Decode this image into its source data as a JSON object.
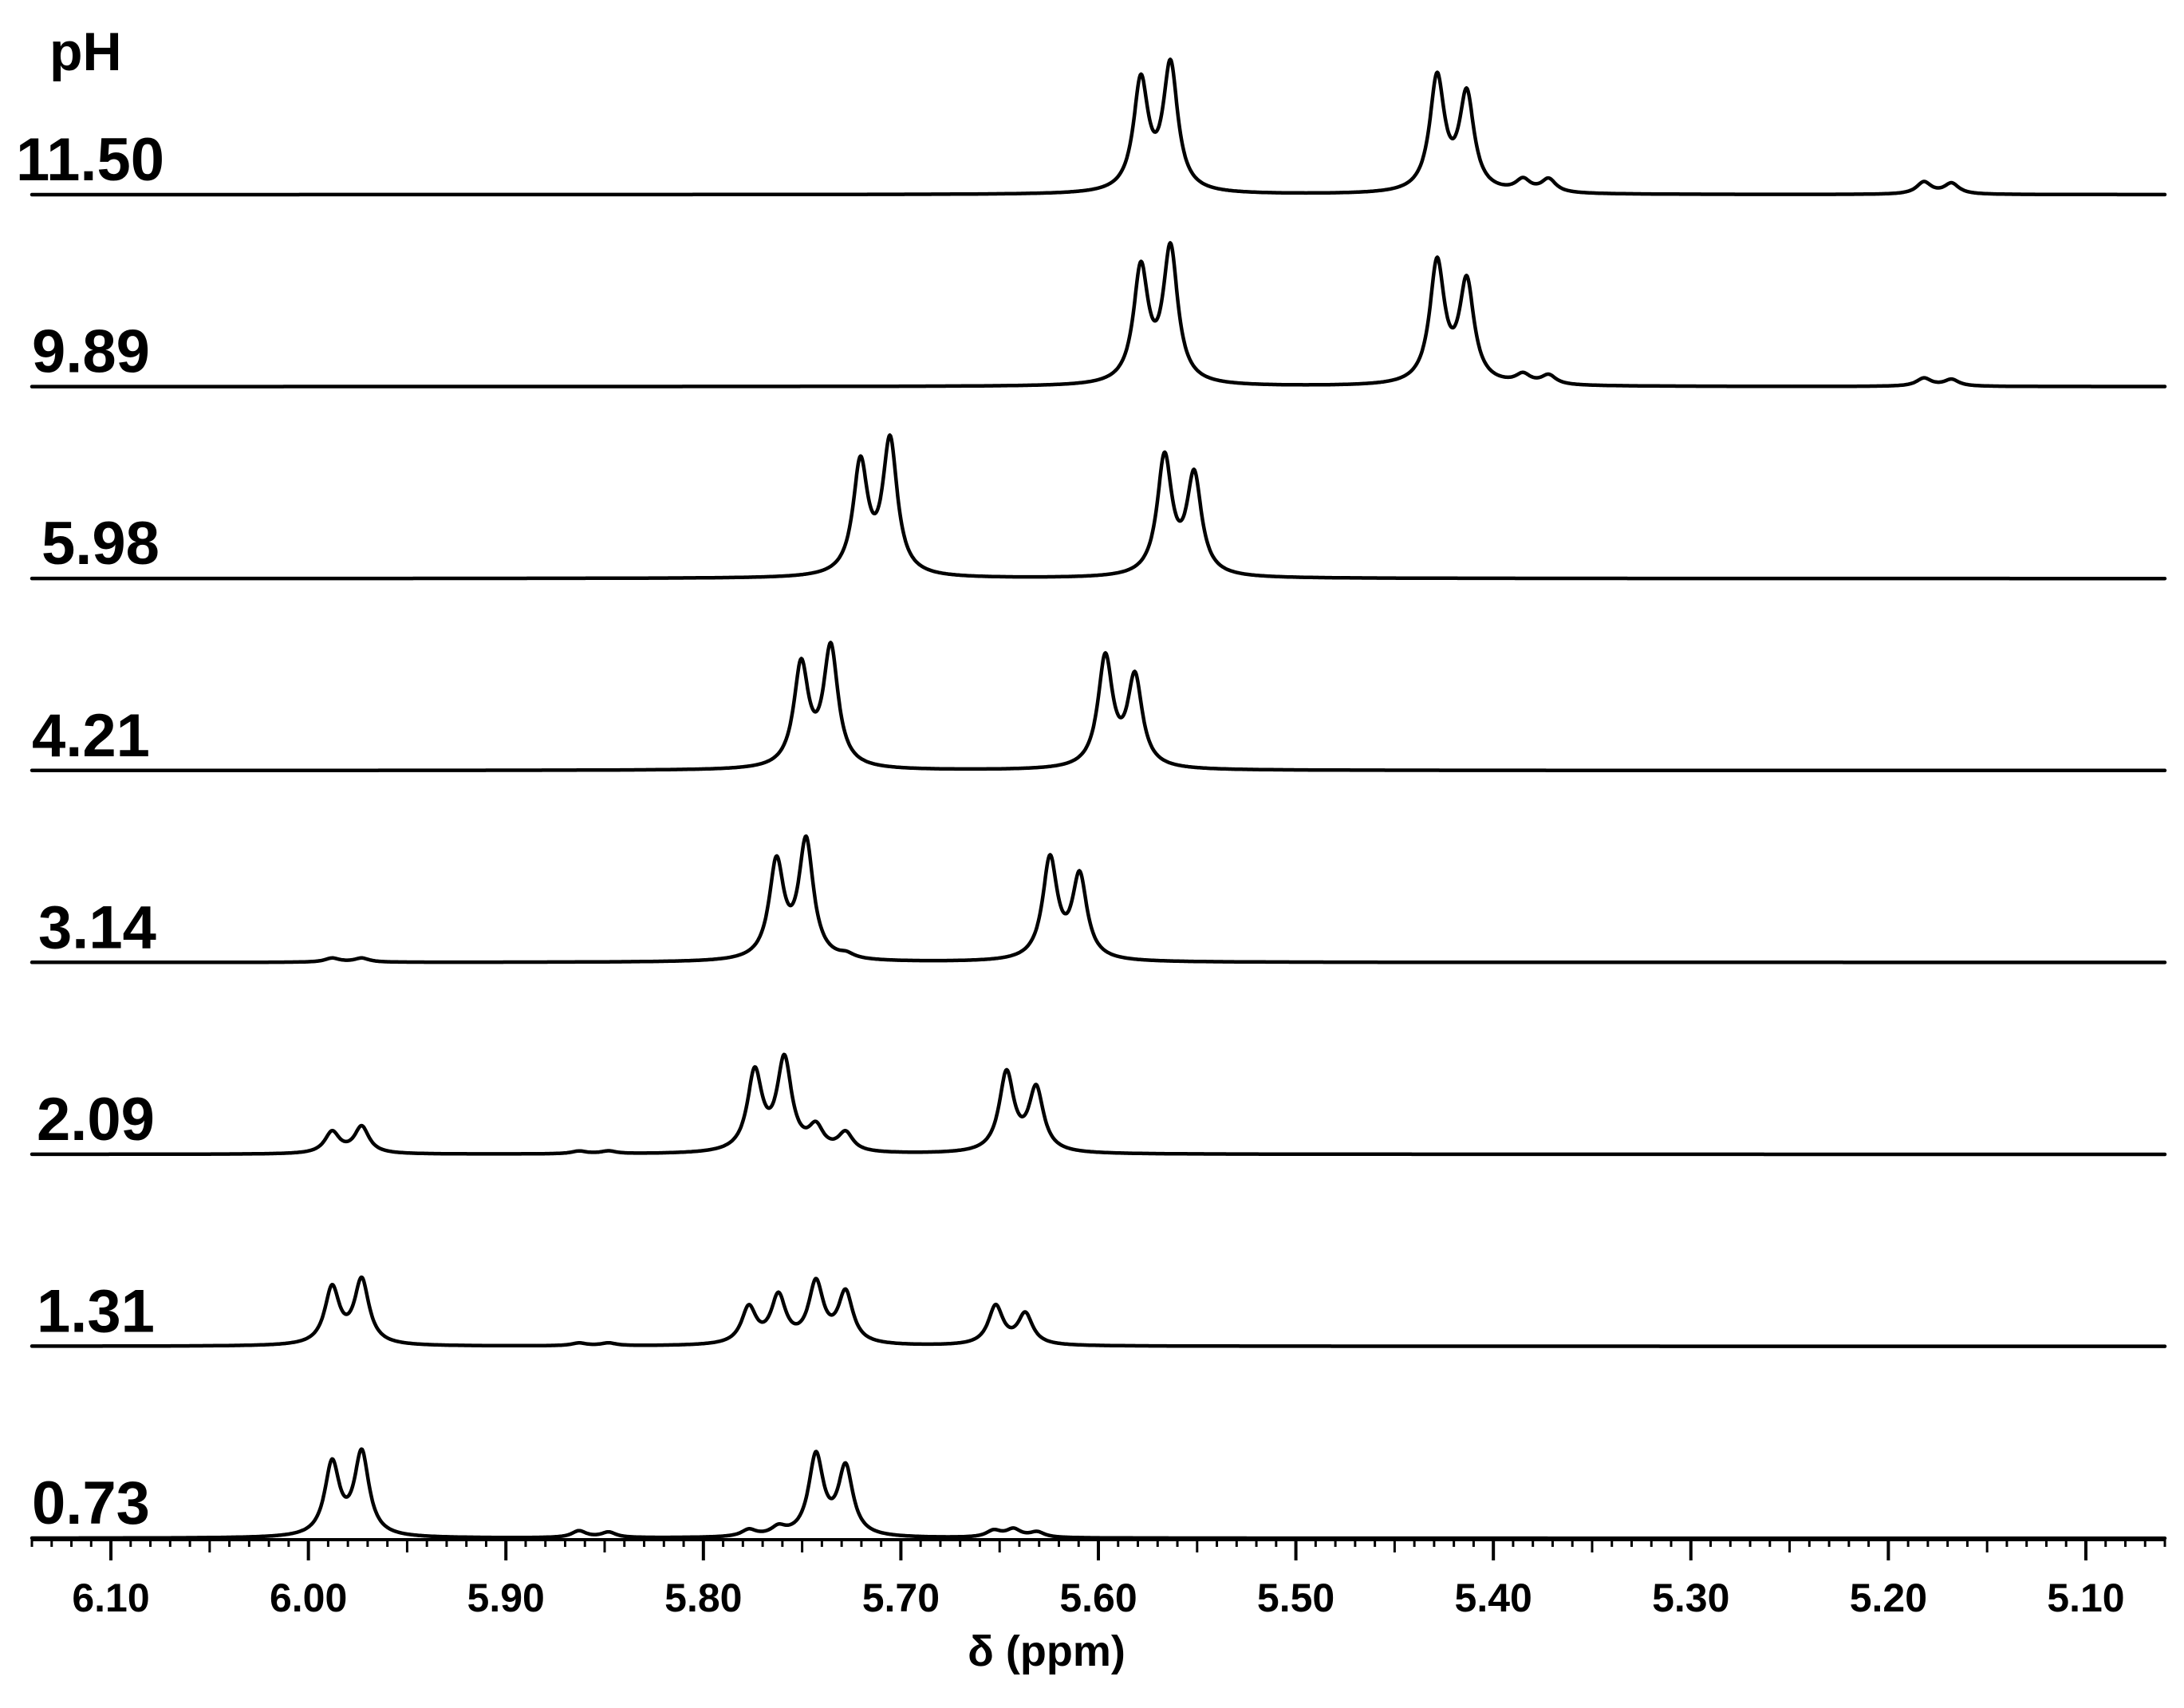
{
  "chart_data": {
    "type": "line",
    "legend_title": "pH",
    "xlabel": "δ (ppm)",
    "ylabel": "",
    "x_reversed": true,
    "xlim": [
      6.14,
      5.06
    ],
    "x_major_step": 0.1,
    "x_minor_step": 0.01,
    "x_tick_labels": [
      "6.10",
      "6.00",
      "5.90",
      "5.80",
      "5.70",
      "5.60",
      "5.50",
      "5.40",
      "5.30",
      "5.20",
      "5.10"
    ],
    "series": [
      {
        "name": "11.50",
        "peaks": [
          {
            "x": 5.5785,
            "h": 0.82
          },
          {
            "x": 5.5635,
            "h": 0.94
          },
          {
            "x": 5.4285,
            "h": 0.85
          },
          {
            "x": 5.4135,
            "h": 0.72
          },
          {
            "x": 5.385,
            "h": 0.09
          },
          {
            "x": 5.372,
            "h": 0.1
          },
          {
            "x": 5.182,
            "h": 0.09
          },
          {
            "x": 5.168,
            "h": 0.08
          }
        ]
      },
      {
        "name": "9.89",
        "peaks": [
          {
            "x": 5.5785,
            "h": 0.85
          },
          {
            "x": 5.5635,
            "h": 1.0
          },
          {
            "x": 5.4285,
            "h": 0.9
          },
          {
            "x": 5.4135,
            "h": 0.75
          },
          {
            "x": 5.385,
            "h": 0.07
          },
          {
            "x": 5.372,
            "h": 0.07
          },
          {
            "x": 5.182,
            "h": 0.06
          },
          {
            "x": 5.168,
            "h": 0.05
          }
        ]
      },
      {
        "name": "5.98",
        "peaks": [
          {
            "x": 5.7205,
            "h": 0.83
          },
          {
            "x": 5.7055,
            "h": 1.0
          },
          {
            "x": 5.5665,
            "h": 0.88
          },
          {
            "x": 5.5515,
            "h": 0.74
          }
        ]
      },
      {
        "name": "4.21",
        "peaks": [
          {
            "x": 5.7505,
            "h": 0.76
          },
          {
            "x": 5.7355,
            "h": 0.89
          },
          {
            "x": 5.5965,
            "h": 0.82
          },
          {
            "x": 5.5815,
            "h": 0.67
          }
        ]
      },
      {
        "name": "3.14",
        "peaks": [
          {
            "x": 5.763,
            "h": 0.72
          },
          {
            "x": 5.748,
            "h": 0.88
          },
          {
            "x": 5.7275,
            "h": 0.03
          },
          {
            "x": 5.6245,
            "h": 0.75
          },
          {
            "x": 5.6095,
            "h": 0.62
          },
          {
            "x": 5.988,
            "h": 0.03
          },
          {
            "x": 5.973,
            "h": 0.03
          }
        ]
      },
      {
        "name": "2.09",
        "peaks": [
          {
            "x": 5.774,
            "h": 0.59
          },
          {
            "x": 5.759,
            "h": 0.68
          },
          {
            "x": 5.743,
            "h": 0.17
          },
          {
            "x": 5.728,
            "h": 0.14
          },
          {
            "x": 5.6465,
            "h": 0.59
          },
          {
            "x": 5.6315,
            "h": 0.47
          },
          {
            "x": 5.988,
            "h": 0.16
          },
          {
            "x": 5.973,
            "h": 0.2
          },
          {
            "x": 5.863,
            "h": 0.02
          },
          {
            "x": 5.848,
            "h": 0.02
          }
        ]
      },
      {
        "name": "1.31",
        "peaks": [
          {
            "x": 5.988,
            "h": 0.42
          },
          {
            "x": 5.973,
            "h": 0.48
          },
          {
            "x": 5.863,
            "h": 0.02
          },
          {
            "x": 5.848,
            "h": 0.02
          },
          {
            "x": 5.777,
            "h": 0.27
          },
          {
            "x": 5.762,
            "h": 0.35
          },
          {
            "x": 5.743,
            "h": 0.45
          },
          {
            "x": 5.728,
            "h": 0.38
          },
          {
            "x": 5.652,
            "h": 0.29
          },
          {
            "x": 5.637,
            "h": 0.23
          }
        ]
      },
      {
        "name": "0.73",
        "peaks": [
          {
            "x": 5.988,
            "h": 0.54
          },
          {
            "x": 5.973,
            "h": 0.62
          },
          {
            "x": 5.863,
            "h": 0.05
          },
          {
            "x": 5.848,
            "h": 0.04
          },
          {
            "x": 5.777,
            "h": 0.05
          },
          {
            "x": 5.762,
            "h": 0.06
          },
          {
            "x": 5.743,
            "h": 0.6
          },
          {
            "x": 5.728,
            "h": 0.51
          },
          {
            "x": 5.653,
            "h": 0.05
          },
          {
            "x": 5.643,
            "h": 0.06
          },
          {
            "x": 5.631,
            "h": 0.04
          }
        ]
      }
    ]
  }
}
